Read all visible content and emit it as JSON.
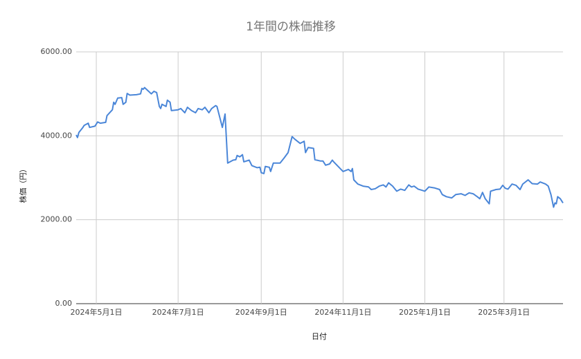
{
  "chart_data": {
    "type": "line",
    "title": "1年間の株価推移",
    "x_label": "日付",
    "y_label": "株価（円）",
    "x": [
      "2024-04-16",
      "2024-04-17",
      "2024-04-18",
      "2024-04-21",
      "2024-04-22",
      "2024-04-25",
      "2024-04-26",
      "2024-04-30",
      "2024-05-02",
      "2024-05-04",
      "2024-05-08",
      "2024-05-09",
      "2024-05-13",
      "2024-05-14",
      "2024-05-15",
      "2024-05-17",
      "2024-05-20",
      "2024-05-21",
      "2024-05-23",
      "2024-05-24",
      "2024-05-26",
      "2024-05-31",
      "2024-06-03",
      "2024-06-04",
      "2024-06-05",
      "2024-06-06",
      "2024-06-09",
      "2024-06-11",
      "2024-06-13",
      "2024-06-15",
      "2024-06-17",
      "2024-06-18",
      "2024-06-19",
      "2024-06-22",
      "2024-06-23",
      "2024-06-25",
      "2024-06-26",
      "2024-07-01",
      "2024-07-03",
      "2024-07-06",
      "2024-07-08",
      "2024-07-11",
      "2024-07-14",
      "2024-07-16",
      "2024-07-19",
      "2024-07-21",
      "2024-07-24",
      "2024-07-26",
      "2024-07-29",
      "2024-07-30",
      "2024-08-01",
      "2024-08-03",
      "2024-08-05",
      "2024-08-07",
      "2024-08-11",
      "2024-08-13",
      "2024-08-14",
      "2024-08-16",
      "2024-08-18",
      "2024-08-19",
      "2024-08-23",
      "2024-08-25",
      "2024-08-29",
      "2024-08-31",
      "2024-09-01",
      "2024-09-03",
      "2024-09-04",
      "2024-09-07",
      "2024-09-08",
      "2024-09-10",
      "2024-09-15",
      "2024-09-18",
      "2024-09-21",
      "2024-09-24",
      "2024-09-26",
      "2024-09-30",
      "2024-10-03",
      "2024-10-04",
      "2024-10-06",
      "2024-10-10",
      "2024-10-11",
      "2024-10-15",
      "2024-10-17",
      "2024-10-19",
      "2024-10-22",
      "2024-10-24",
      "2024-10-25",
      "2024-11-01",
      "2024-11-05",
      "2024-11-07",
      "2024-11-08",
      "2024-11-09",
      "2024-11-12",
      "2024-11-16",
      "2024-11-20",
      "2024-11-22",
      "2024-11-25",
      "2024-11-28",
      "2024-12-01",
      "2024-12-03",
      "2024-12-05",
      "2024-12-08",
      "2024-12-11",
      "2024-12-14",
      "2024-12-17",
      "2024-12-20",
      "2024-12-22",
      "2024-12-24",
      "2024-12-27",
      "2024-12-30",
      "2025-01-01",
      "2025-01-04",
      "2025-01-08",
      "2025-01-12",
      "2025-01-14",
      "2025-01-17",
      "2025-01-21",
      "2025-01-24",
      "2025-01-28",
      "2025-01-31",
      "2025-02-03",
      "2025-02-06",
      "2025-02-09",
      "2025-02-11",
      "2025-02-13",
      "2025-02-15",
      "2025-02-18",
      "2025-02-19",
      "2025-02-23",
      "2025-02-26",
      "2025-02-28",
      "2025-03-02",
      "2025-03-04",
      "2025-03-07",
      "2025-03-10",
      "2025-03-13",
      "2025-03-15",
      "2025-03-19",
      "2025-03-22",
      "2025-03-26",
      "2025-03-28",
      "2025-04-01",
      "2025-04-03",
      "2025-04-05",
      "2025-04-07",
      "2025-04-08",
      "2025-04-09",
      "2025-04-10",
      "2025-04-12",
      "2025-04-14"
    ],
    "series": [
      {
        "name": "株価",
        "color": "#4a86d8",
        "values": [
          4020,
          3960,
          4080,
          4200,
          4250,
          4300,
          4200,
          4230,
          4330,
          4300,
          4320,
          4480,
          4620,
          4800,
          4750,
          4900,
          4910,
          4750,
          4800,
          5010,
          4970,
          4980,
          5000,
          5130,
          5110,
          5150,
          5060,
          5000,
          5060,
          5030,
          4700,
          4650,
          4750,
          4700,
          4850,
          4800,
          4600,
          4620,
          4650,
          4550,
          4680,
          4600,
          4550,
          4650,
          4620,
          4680,
          4550,
          4650,
          4720,
          4700,
          4450,
          4200,
          4520,
          3350,
          3420,
          3430,
          3530,
          3500,
          3550,
          3380,
          3420,
          3290,
          3240,
          3250,
          3120,
          3100,
          3270,
          3250,
          3150,
          3350,
          3350,
          3470,
          3600,
          3980,
          3920,
          3820,
          3870,
          3600,
          3720,
          3700,
          3430,
          3400,
          3400,
          3300,
          3330,
          3420,
          3380,
          3150,
          3200,
          3150,
          3220,
          2950,
          2850,
          2800,
          2780,
          2720,
          2740,
          2800,
          2830,
          2780,
          2880,
          2800,
          2680,
          2730,
          2700,
          2830,
          2780,
          2800,
          2730,
          2700,
          2680,
          2780,
          2760,
          2720,
          2600,
          2550,
          2520,
          2600,
          2620,
          2580,
          2640,
          2620,
          2550,
          2500,
          2650,
          2500,
          2380,
          2680,
          2720,
          2730,
          2820,
          2750,
          2730,
          2850,
          2820,
          2720,
          2850,
          2950,
          2860,
          2850,
          2900,
          2850,
          2800,
          2600,
          2300,
          2400,
          2380,
          2550,
          2500,
          2400
        ]
      }
    ],
    "xlim": [
      "2024-04-16",
      "2025-04-14"
    ],
    "xticks": [
      {
        "value": "2024-05-01",
        "label": "2024年5月1日"
      },
      {
        "value": "2024-07-01",
        "label": "2024年7月1日"
      },
      {
        "value": "2024-09-01",
        "label": "2024年9月1日"
      },
      {
        "value": "2024-11-01",
        "label": "2024年11月1日"
      },
      {
        "value": "2025-01-01",
        "label": "2025年1月1日"
      },
      {
        "value": "2025-03-01",
        "label": "2025年3月1日"
      }
    ],
    "ylim": [
      0,
      6000
    ],
    "yticks": [
      {
        "value": 0,
        "label": "0.00"
      },
      {
        "value": 2000,
        "label": "2000.00"
      },
      {
        "value": 4000,
        "label": "4000.00"
      },
      {
        "value": 6000,
        "label": "6000.00"
      }
    ],
    "grid": true
  }
}
